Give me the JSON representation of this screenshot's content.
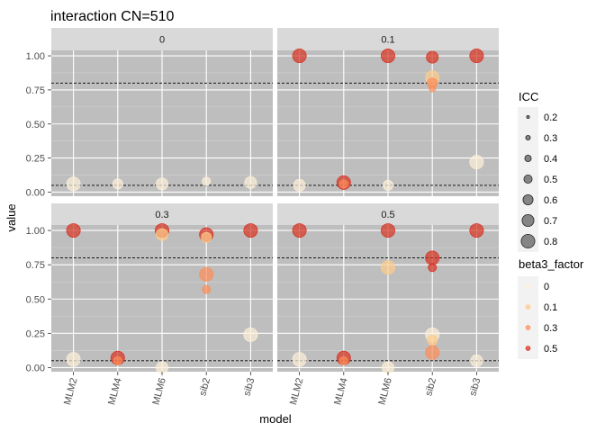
{
  "chart_data": {
    "type": "scatter",
    "title": "interaction CN=510",
    "xlabel": "model",
    "ylabel": "value",
    "categories": [
      "MLM2",
      "MLM4",
      "MLM6",
      "sib2",
      "sib3"
    ],
    "y_ticks": [
      "0.00",
      "0.25",
      "0.50",
      "0.75",
      "1.00"
    ],
    "ylim": [
      -0.03,
      1.04
    ],
    "reference_lines": [
      0.05,
      0.8
    ],
    "panel_background": "#bebebe",
    "strip_background": "#d9d9d9",
    "grid": true,
    "facets": [
      {
        "label": "0",
        "points": [
          {
            "x": "MLM2",
            "y": 0.06,
            "beta3": "0",
            "icc": 0.8
          },
          {
            "x": "MLM4",
            "y": 0.06,
            "beta3": "0",
            "icc": 0.6
          },
          {
            "x": "MLM6",
            "y": 0.06,
            "beta3": "0",
            "icc": 0.7
          },
          {
            "x": "sib2",
            "y": 0.08,
            "beta3": "0",
            "icc": 0.5
          },
          {
            "x": "sib3",
            "y": 0.07,
            "beta3": "0",
            "icc": 0.7
          }
        ]
      },
      {
        "label": "0.1",
        "points": [
          {
            "x": "MLM2",
            "y": 1.0,
            "beta3": "0.5",
            "icc": 0.8
          },
          {
            "x": "MLM2",
            "y": 0.05,
            "beta3": "0",
            "icc": 0.7
          },
          {
            "x": "MLM4",
            "y": 0.07,
            "beta3": "0.5",
            "icc": 0.8
          },
          {
            "x": "MLM4",
            "y": 0.06,
            "beta3": "0.3",
            "icc": 0.5
          },
          {
            "x": "MLM6",
            "y": 1.0,
            "beta3": "0.5",
            "icc": 0.8
          },
          {
            "x": "MLM6",
            "y": 0.05,
            "beta3": "0",
            "icc": 0.6
          },
          {
            "x": "sib2",
            "y": 0.99,
            "beta3": "0.5",
            "icc": 0.7
          },
          {
            "x": "sib2",
            "y": 0.84,
            "beta3": "0.1",
            "icc": 0.8
          },
          {
            "x": "sib2",
            "y": 0.8,
            "beta3": "0.3",
            "icc": 0.6
          },
          {
            "x": "sib2",
            "y": 0.76,
            "beta3": "0.3",
            "icc": 0.4
          },
          {
            "x": "sib3",
            "y": 1.0,
            "beta3": "0.5",
            "icc": 0.8
          },
          {
            "x": "sib3",
            "y": 0.22,
            "beta3": "0",
            "icc": 0.8
          }
        ]
      },
      {
        "label": "0.3",
        "points": [
          {
            "x": "MLM2",
            "y": 1.0,
            "beta3": "0.5",
            "icc": 0.8
          },
          {
            "x": "MLM2",
            "y": 0.06,
            "beta3": "0",
            "icc": 0.8
          },
          {
            "x": "MLM4",
            "y": 0.07,
            "beta3": "0.5",
            "icc": 0.8
          },
          {
            "x": "MLM4",
            "y": 0.05,
            "beta3": "0.3",
            "icc": 0.5
          },
          {
            "x": "MLM6",
            "y": 1.0,
            "beta3": "0.5",
            "icc": 0.8
          },
          {
            "x": "MLM6",
            "y": 0.97,
            "beta3": "0.1",
            "icc": 0.7
          },
          {
            "x": "MLM6",
            "y": 0.0,
            "beta3": "0",
            "icc": 0.7
          },
          {
            "x": "sib2",
            "y": 0.97,
            "beta3": "0.5",
            "icc": 0.8
          },
          {
            "x": "sib2",
            "y": 0.95,
            "beta3": "0.1",
            "icc": 0.6
          },
          {
            "x": "sib2",
            "y": 0.68,
            "beta3": "0.3",
            "icc": 0.8
          },
          {
            "x": "sib2",
            "y": 0.57,
            "beta3": "0.3",
            "icc": 0.5
          },
          {
            "x": "sib3",
            "y": 1.0,
            "beta3": "0.5",
            "icc": 0.8
          },
          {
            "x": "sib3",
            "y": 0.24,
            "beta3": "0",
            "icc": 0.8
          }
        ]
      },
      {
        "label": "0.5",
        "points": [
          {
            "x": "MLM2",
            "y": 1.0,
            "beta3": "0.5",
            "icc": 0.8
          },
          {
            "x": "MLM2",
            "y": 0.06,
            "beta3": "0",
            "icc": 0.8
          },
          {
            "x": "MLM4",
            "y": 0.07,
            "beta3": "0.5",
            "icc": 0.8
          },
          {
            "x": "MLM4",
            "y": 0.05,
            "beta3": "0.3",
            "icc": 0.5
          },
          {
            "x": "MLM6",
            "y": 1.0,
            "beta3": "0.5",
            "icc": 0.8
          },
          {
            "x": "MLM6",
            "y": 0.73,
            "beta3": "0.1",
            "icc": 0.8
          },
          {
            "x": "MLM6",
            "y": 0.0,
            "beta3": "0",
            "icc": 0.7
          },
          {
            "x": "sib2",
            "y": 0.8,
            "beta3": "0.5",
            "icc": 0.8
          },
          {
            "x": "sib2",
            "y": 0.73,
            "beta3": "0.5",
            "icc": 0.5
          },
          {
            "x": "sib2",
            "y": 0.24,
            "beta3": "0",
            "icc": 0.8
          },
          {
            "x": "sib2",
            "y": 0.2,
            "beta3": "0.1",
            "icc": 0.6
          },
          {
            "x": "sib2",
            "y": 0.11,
            "beta3": "0.3",
            "icc": 0.8
          },
          {
            "x": "sib3",
            "y": 1.0,
            "beta3": "0.5",
            "icc": 0.8
          },
          {
            "x": "sib3",
            "y": 0.05,
            "beta3": "0",
            "icc": 0.7
          }
        ]
      }
    ],
    "legend_placement": "right",
    "legends": {
      "size": {
        "title": "ICC",
        "labels": [
          "0.2",
          "0.3",
          "0.4",
          "0.5",
          "0.6",
          "0.7",
          "0.8"
        ],
        "values": [
          0.2,
          0.3,
          0.4,
          0.5,
          0.6,
          0.7,
          0.8
        ]
      },
      "color": {
        "title": "beta3_factor",
        "labels": [
          "0",
          "0.1",
          "0.3",
          "0.5"
        ],
        "colors": [
          "#fef0d9",
          "#fdcc8a",
          "#fc8d59",
          "#d7301f"
        ]
      }
    }
  }
}
